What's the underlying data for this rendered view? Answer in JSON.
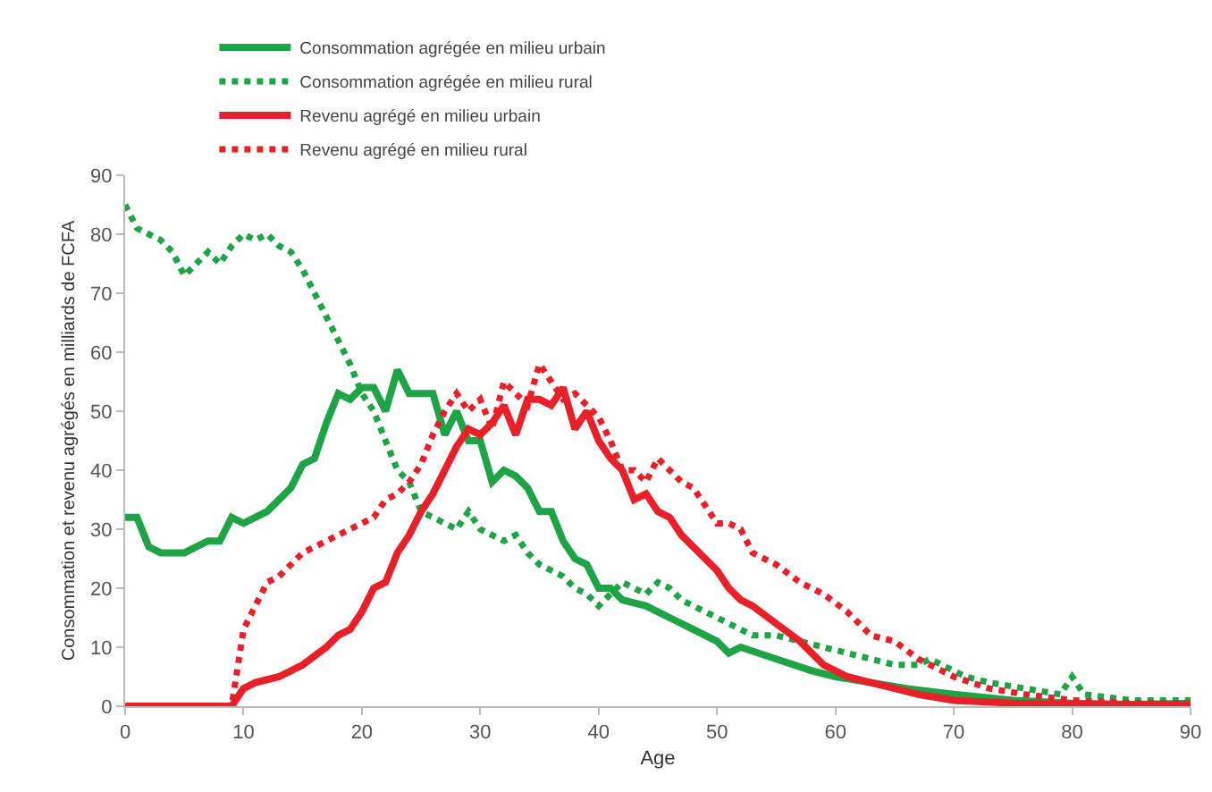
{
  "chart_data": {
    "type": "line",
    "xlabel": "Age",
    "ylabel": "Consommation et revenu agrégés en milliards de FCFA",
    "xlim": [
      0,
      90
    ],
    "xticks": [
      0,
      10,
      20,
      30,
      40,
      50,
      60,
      70,
      80,
      90
    ],
    "ylim": [
      0,
      90
    ],
    "yticks": [
      0,
      10,
      20,
      30,
      40,
      50,
      60,
      70,
      80,
      90
    ],
    "grid": false,
    "legend": "top",
    "marker": "none",
    "series": [
      {
        "name": "Consommation agrégée en milieu urbain",
        "color": "#1fa347",
        "line_style": "solid",
        "x": [
          0,
          1,
          2,
          3,
          5,
          7,
          8,
          9,
          10,
          12,
          14,
          15,
          16,
          17,
          18,
          19,
          20,
          21,
          22,
          23,
          24,
          25,
          26,
          27,
          28,
          29,
          30,
          31,
          32,
          33,
          34,
          35,
          36,
          37,
          38,
          39,
          40,
          41,
          42,
          44,
          46,
          48,
          50,
          51,
          52,
          55,
          58,
          60,
          63,
          66,
          70,
          75,
          80,
          85,
          90
        ],
        "values": [
          32,
          32,
          27,
          26,
          26,
          28,
          28,
          32,
          31,
          33,
          37,
          41,
          42,
          48,
          53,
          52,
          54,
          54,
          50,
          57,
          53,
          53,
          53,
          46,
          50,
          45,
          45,
          38,
          40,
          39,
          37,
          33,
          33,
          28,
          25,
          24,
          20,
          20,
          18,
          17,
          15,
          13,
          11,
          9,
          10,
          8,
          6,
          5,
          4,
          3,
          2,
          1,
          0.5,
          0.3,
          0.5
        ]
      },
      {
        "name": "Consommation agrégée en milieu rural",
        "color": "#1fa347",
        "line_style": "dotted",
        "x": [
          0,
          1,
          2,
          3,
          4,
          5,
          6,
          7,
          8,
          9,
          10,
          11,
          12,
          13,
          14,
          15,
          16,
          17,
          18,
          19,
          20,
          21,
          22,
          23,
          24,
          25,
          26,
          27,
          28,
          29,
          30,
          31,
          32,
          33,
          34,
          35,
          36,
          37,
          38,
          39,
          40,
          41,
          42,
          43,
          44,
          45,
          46,
          47,
          48,
          50,
          52,
          53,
          55,
          57,
          59,
          61,
          63,
          65,
          67,
          68,
          69,
          71,
          73,
          76,
          79,
          80,
          81,
          85,
          90
        ],
        "values": [
          85,
          81,
          80,
          79,
          77,
          73,
          75,
          77,
          75,
          78,
          80,
          79,
          80,
          78,
          77,
          74,
          70,
          66,
          62,
          58,
          53,
          50,
          45,
          40,
          38,
          33,
          32,
          31,
          30,
          33,
          30,
          29,
          28,
          29,
          26,
          24,
          23,
          22,
          20,
          19,
          17,
          19,
          21,
          20,
          19,
          21,
          20,
          18,
          17,
          15,
          13,
          12,
          12,
          11,
          10,
          9,
          8,
          7,
          7,
          8,
          7,
          5,
          4,
          3,
          2,
          5,
          2,
          1,
          1
        ]
      },
      {
        "name": "Revenu agrégé en milieu urbain",
        "color": "#e8202a",
        "line_style": "solid",
        "x": [
          0,
          9,
          10,
          11,
          13,
          15,
          17,
          18,
          19,
          20,
          21,
          22,
          23,
          24,
          25,
          26,
          27,
          28,
          29,
          30,
          31,
          32,
          33,
          34,
          35,
          36,
          37,
          38,
          39,
          40,
          41,
          42,
          43,
          44,
          45,
          46,
          47,
          48,
          49,
          50,
          51,
          52,
          53,
          55,
          57,
          59,
          61,
          63,
          65,
          67,
          70,
          75,
          80,
          90
        ],
        "values": [
          0,
          0,
          3,
          4,
          5,
          7,
          10,
          12,
          13,
          16,
          20,
          21,
          26,
          29,
          33,
          36,
          40,
          44,
          47,
          46,
          48,
          51,
          46,
          52,
          52,
          51,
          54,
          47,
          50,
          45,
          42,
          40,
          35,
          36,
          33,
          32,
          29,
          27,
          25,
          23,
          20,
          18,
          17,
          14,
          11,
          7,
          5,
          4,
          3,
          2,
          1,
          0.5,
          0.3,
          0.2
        ]
      },
      {
        "name": "Revenu agrégé en milieu rural",
        "color": "#e8202a",
        "line_style": "dotted",
        "x": [
          0,
          9,
          10,
          11,
          12,
          13,
          15,
          17,
          18,
          19,
          20,
          21,
          22,
          23,
          24,
          25,
          26,
          27,
          28,
          29,
          30,
          31,
          32,
          33,
          34,
          35,
          36,
          37,
          38,
          39,
          40,
          41,
          42,
          43,
          44,
          45,
          46,
          47,
          48,
          49,
          50,
          51,
          52,
          53,
          55,
          57,
          59,
          61,
          63,
          65,
          67,
          70,
          73,
          76,
          80,
          85,
          90
        ],
        "values": [
          0,
          0,
          13,
          17,
          21,
          22,
          26,
          28,
          29,
          30,
          31,
          32,
          35,
          36,
          38,
          41,
          46,
          50,
          53,
          50,
          52,
          47,
          55,
          53,
          51,
          58,
          55,
          52,
          53,
          51,
          49,
          45,
          40,
          40,
          38,
          42,
          40,
          38,
          37,
          34,
          31,
          31,
          30,
          26,
          24,
          21,
          19,
          16,
          12,
          11,
          8,
          5,
          3,
          2,
          1,
          0.5,
          0.5
        ]
      }
    ]
  }
}
